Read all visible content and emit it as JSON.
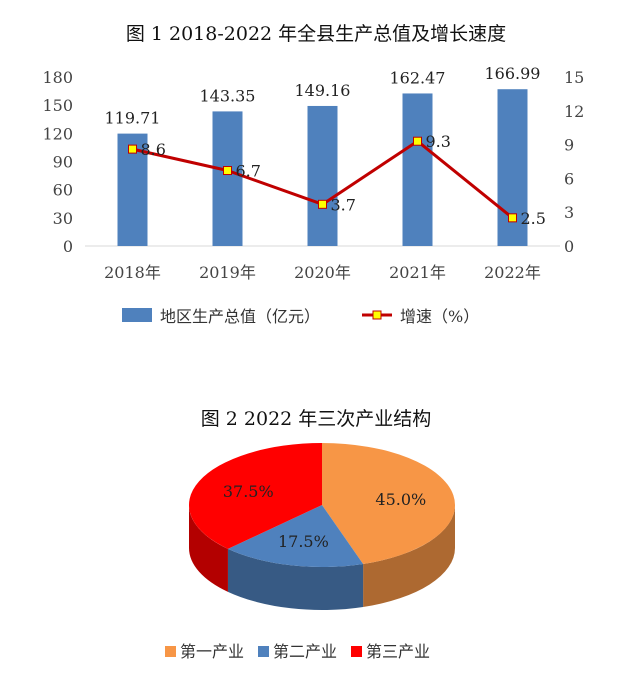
{
  "chart_data": [
    {
      "type": "bar",
      "title": "图 1    2018-2022 年全县生产总值及增长速度",
      "categories": [
        "2018年",
        "2019年",
        "2020年",
        "2021年",
        "2022年"
      ],
      "series": [
        {
          "name": "地区生产总值（亿元）",
          "type": "bar",
          "axis": "left",
          "values": [
            119.71,
            143.35,
            149.16,
            162.47,
            166.99
          ],
          "labels": [
            "119.71",
            "143.35",
            "149.16",
            "162.47",
            "166.99"
          ],
          "color": "#4f81bd"
        },
        {
          "name": "增速（%）",
          "type": "line",
          "axis": "right",
          "values": [
            8.6,
            6.7,
            3.7,
            9.3,
            2.5
          ],
          "labels": [
            "8.6",
            "6.7",
            "3.7",
            "9.3",
            "2.5"
          ],
          "color": "#c00000",
          "marker_color": "#ffff00"
        }
      ],
      "ylim_left": [
        0,
        180
      ],
      "yticks_left": [
        "0",
        "30",
        "60",
        "90",
        "120",
        "150",
        "180"
      ],
      "ylim_right": [
        0,
        15
      ],
      "yticks_right": [
        "0",
        "3",
        "6",
        "9",
        "12",
        "15"
      ],
      "grid": false,
      "legend_position": "bottom"
    },
    {
      "type": "pie",
      "title": "图 2      2022 年三次产业结构",
      "three_d": true,
      "slices": [
        {
          "name": "第一产业",
          "value": 45.0,
          "label": "45.0%",
          "color": "#f79646"
        },
        {
          "name": "第二产业",
          "value": 17.5,
          "label": "17.5%",
          "color": "#4f81bd"
        },
        {
          "name": "第三产业",
          "value": 37.5,
          "label": "37.5%",
          "color": "#ff0000"
        }
      ],
      "legend_position": "bottom"
    }
  ]
}
